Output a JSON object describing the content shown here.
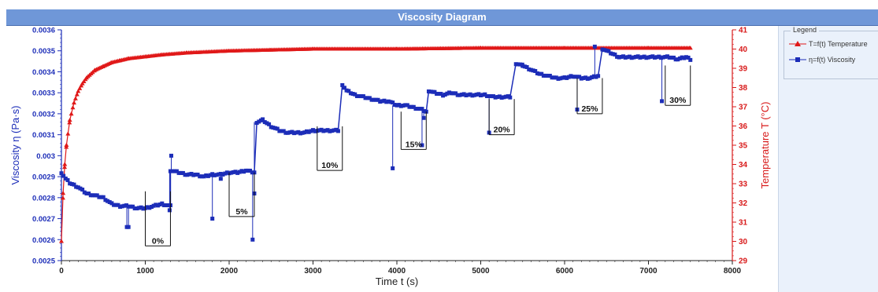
{
  "window": {
    "title": "Viscosity Diagram"
  },
  "legend": {
    "title": "Legend",
    "items": [
      {
        "label": "T=f(t) Temperature",
        "color": "#e01818",
        "marker": "triangle"
      },
      {
        "label": "η=f(t) Viscosity",
        "color": "#1c2db8",
        "marker": "square"
      }
    ]
  },
  "chart_data": {
    "type": "scatter",
    "title": "Viscosity Diagram",
    "xlabel": "Time t (s)",
    "ylabel_left": "Viscosity η (Pa·s)",
    "ylabel_right": "Temperature T (°C)",
    "xlim": [
      0,
      8000
    ],
    "ylim_left": [
      0.0025,
      0.0036
    ],
    "ylim_right": [
      29,
      41
    ],
    "x_ticks": [
      "0",
      "1000",
      "2000",
      "3000",
      "4000",
      "5000",
      "6000",
      "7000",
      "8000"
    ],
    "y_left_ticks": [
      "0.0025",
      "0.0026",
      "0.0027",
      "0.0028",
      "0.0029",
      "0.003",
      "0.0031",
      "0.0032",
      "0.0033",
      "0.0034",
      "0.0035",
      "0.0036"
    ],
    "y_right_ticks": [
      "29",
      "30",
      "31",
      "32",
      "33",
      "34",
      "35",
      "36",
      "37",
      "38",
      "39",
      "40",
      "41"
    ],
    "grid": false,
    "legend_position": "right",
    "series": [
      {
        "name": "T=f(t) Temperature",
        "axis": "right",
        "color": "#e01818",
        "marker": "triangle",
        "x": [
          0,
          20,
          40,
          60,
          100,
          150,
          200,
          250,
          300,
          400,
          500,
          600,
          700,
          800,
          1000,
          1200,
          1500,
          2000,
          2500,
          3000,
          4000,
          5000,
          6000,
          7000,
          7500
        ],
        "y": [
          30,
          32.5,
          34,
          35,
          36.3,
          37.2,
          37.8,
          38.2,
          38.5,
          38.9,
          39.1,
          39.3,
          39.4,
          39.5,
          39.6,
          39.7,
          39.8,
          39.9,
          39.95,
          40,
          40,
          40.05,
          40.05,
          40.05,
          40.05
        ]
      },
      {
        "name": "η=f(t) Viscosity",
        "axis": "left",
        "color": "#1c2db8",
        "marker": "square",
        "segments": [
          {
            "x": [
              0,
              50,
              100,
              200,
              300,
              400,
              500,
              600,
              700,
              800,
              900,
              1000,
              1100,
              1200,
              1300
            ],
            "y": [
              0.00292,
              0.00289,
              0.00287,
              0.00285,
              0.00282,
              0.00281,
              0.0028,
              0.00277,
              0.00276,
              0.00276,
              0.00275,
              0.00275,
              0.00276,
              0.00277,
              0.00276
            ]
          },
          {
            "x": [
              1300,
              1400,
              1500,
              1600,
              1700,
              1800,
              1900,
              2000,
              2100,
              2200,
              2300
            ],
            "y": [
              0.00293,
              0.00292,
              0.00291,
              0.00291,
              0.0029,
              0.00291,
              0.00291,
              0.00292,
              0.00292,
              0.00293,
              0.00292
            ]
          },
          {
            "x": [
              2330,
              2400,
              2500,
              2600,
              2700,
              2800,
              2900,
              3000,
              3100,
              3200,
              3300
            ],
            "y": [
              0.00316,
              0.00317,
              0.00314,
              0.00312,
              0.00311,
              0.00311,
              0.00311,
              0.00312,
              0.00312,
              0.00312,
              0.00312
            ]
          },
          {
            "x": [
              3350,
              3400,
              3500,
              3600,
              3700,
              3800,
              3900,
              4000,
              4100,
              4200,
              4300,
              4350
            ],
            "y": [
              0.00334,
              0.00331,
              0.00329,
              0.00328,
              0.00327,
              0.00326,
              0.00326,
              0.00324,
              0.00324,
              0.00323,
              0.00322,
              0.00321
            ]
          },
          {
            "x": [
              4380,
              4450,
              4550,
              4650,
              4750,
              4850,
              4950,
              5050,
              5150,
              5250,
              5350
            ],
            "y": [
              0.00331,
              0.0033,
              0.00329,
              0.0033,
              0.00329,
              0.00329,
              0.00329,
              0.00329,
              0.00328,
              0.00328,
              0.00328
            ]
          },
          {
            "x": [
              5420,
              5500,
              5600,
              5700,
              5800,
              5900,
              6000,
              6100,
              6200,
              6300,
              6400
            ],
            "y": [
              0.00344,
              0.00343,
              0.00341,
              0.00339,
              0.00338,
              0.00337,
              0.00337,
              0.00338,
              0.00337,
              0.00337,
              0.00338
            ]
          },
          {
            "x": [
              6450,
              6550,
              6650,
              6750,
              6850,
              6950,
              7050,
              7150,
              7250,
              7350,
              7450,
              7500
            ],
            "y": [
              0.00351,
              0.00349,
              0.00347,
              0.00347,
              0.00347,
              0.00347,
              0.00347,
              0.00347,
              0.00347,
              0.00346,
              0.00347,
              0.00346
            ]
          }
        ],
        "outliers": {
          "x": [
            780,
            800,
            1290,
            1310,
            1800,
            1900,
            2280,
            2300,
            3950,
            4300,
            4320,
            5100,
            6150,
            6360,
            7160
          ],
          "y": [
            0.00266,
            0.00266,
            0.00274,
            0.003,
            0.0027,
            0.00289,
            0.0026,
            0.00282,
            0.00294,
            0.00305,
            0.00318,
            0.00311,
            0.00322,
            0.00352,
            0.00326
          ]
        }
      }
    ],
    "annotations": [
      {
        "label": "0%",
        "x_start": 1000,
        "x_end": 1300,
        "y_top": 0.00283,
        "y_bottom": 0.00257
      },
      {
        "label": "5%",
        "x_start": 2000,
        "x_end": 2300,
        "y_top": 0.00292,
        "y_bottom": 0.00271
      },
      {
        "label": "10%",
        "x_start": 3050,
        "x_end": 3350,
        "y_top": 0.00314,
        "y_bottom": 0.00293
      },
      {
        "label": "15%",
        "x_start": 4050,
        "x_end": 4350,
        "y_top": 0.00321,
        "y_bottom": 0.00303
      },
      {
        "label": "20%",
        "x_start": 5100,
        "x_end": 5400,
        "y_top": 0.00327,
        "y_bottom": 0.0031
      },
      {
        "label": "25%",
        "x_start": 6150,
        "x_end": 6450,
        "y_top": 0.00337,
        "y_bottom": 0.0032
      },
      {
        "label": "30%",
        "x_start": 7200,
        "x_end": 7500,
        "y_top": 0.00343,
        "y_bottom": 0.00324
      }
    ]
  }
}
